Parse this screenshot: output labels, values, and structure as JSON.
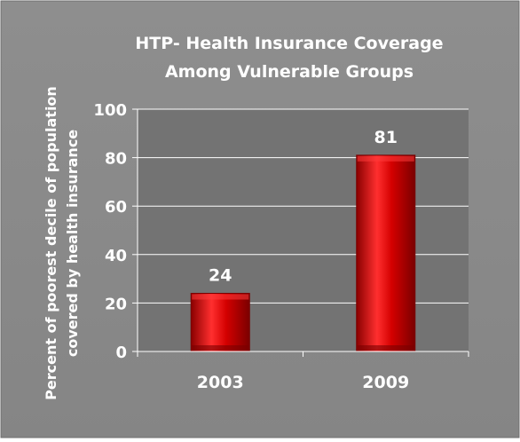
{
  "chart_data": {
    "type": "bar",
    "title_lines": [
      "HTP- Health  Insurance Coverage",
      "Among Vulnerable Groups"
    ],
    "ylabel_lines": [
      "Percent of poorest decile of population",
      "covered by health insurance"
    ],
    "xlabel": "",
    "categories": [
      "2003",
      "2009"
    ],
    "values": [
      24,
      81
    ],
    "data_labels": [
      "24",
      "81"
    ],
    "ylim": [
      0,
      100
    ],
    "yticks": [
      "0",
      "20",
      "40",
      "60",
      "80",
      "100"
    ],
    "grid": true,
    "legend": "none",
    "colors": {
      "background": "#8c8c8c",
      "plot_area": "#737373",
      "bar": "#c00000",
      "bar_light": "#ff3b3b",
      "bar_dark": "#7a0000",
      "text": "#ffffff",
      "gridline": "#ffffff"
    }
  }
}
